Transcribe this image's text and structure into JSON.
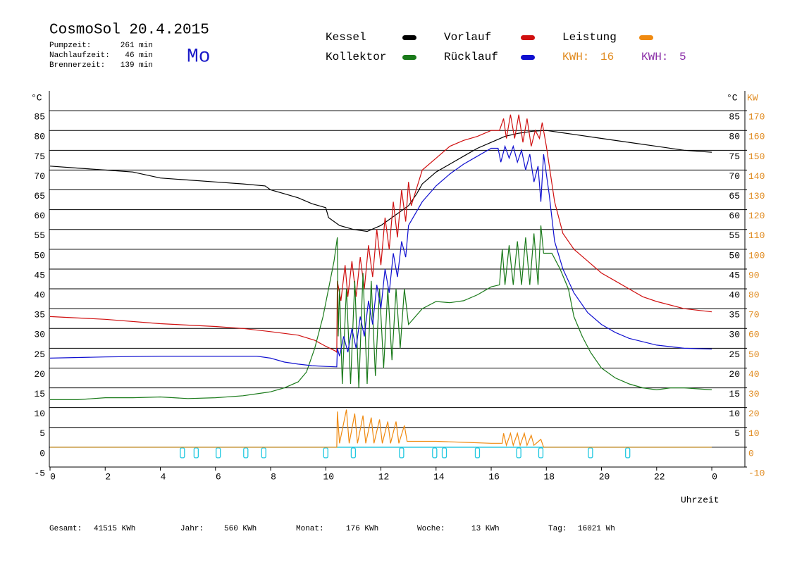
{
  "header": {
    "title": "CosmoSol 20.4.2015",
    "day": "Mo",
    "stats": [
      {
        "label": "Pumpzeit:",
        "value": "261 min"
      },
      {
        "label": "Nachlaufzeit:",
        "value": "46 min"
      },
      {
        "label": "Brennerzeit:",
        "value": "139 min"
      }
    ],
    "kwh": [
      {
        "label": "KWH:",
        "value": 16,
        "color": "#e08a1e"
      },
      {
        "label": "KWH:",
        "value": 5,
        "color": "#8b2fa8"
      }
    ]
  },
  "chart_data": {
    "type": "line",
    "xlabel": "Uhrzeit",
    "ylabel": "°C",
    "ylabel_right": "°C",
    "y2label": "KW",
    "xlim": [
      0,
      25.2
    ],
    "xticks": [
      0,
      2,
      4,
      6,
      8,
      10,
      12,
      14,
      16,
      18,
      20,
      22,
      {
        "value": 24,
        "label": "0"
      }
    ],
    "ylim": [
      -5,
      90
    ],
    "yticks": [
      -5,
      0,
      5,
      10,
      15,
      20,
      25,
      30,
      35,
      40,
      45,
      50,
      55,
      60,
      65,
      70,
      75,
      80,
      85
    ],
    "yticks_right": [
      5,
      10,
      15,
      20,
      25,
      30,
      35,
      40,
      45,
      50,
      55,
      60,
      65,
      70,
      75,
      80,
      85
    ],
    "y2lim": [
      -10,
      180
    ],
    "y2ticks": [
      -10,
      0,
      10,
      20,
      30,
      40,
      50,
      60,
      70,
      80,
      90,
      100,
      110,
      120,
      130,
      140,
      150,
      160,
      170
    ],
    "grid": true,
    "series": [
      {
        "name": "Kessel",
        "color": "#000000",
        "x": [
          0,
          1,
          2,
          3,
          4,
          5,
          6,
          7,
          7.8,
          8,
          8.5,
          9,
          9.5,
          10,
          10.1,
          10.5,
          11,
          11.5,
          12,
          12.5,
          13,
          13.3,
          13.5,
          14,
          14.5,
          15,
          15.5,
          16,
          16.5,
          17,
          17.5,
          18,
          18.5,
          19,
          20,
          21,
          22,
          23,
          24
        ],
        "values": [
          71,
          70.5,
          70,
          69.5,
          68,
          67.5,
          67,
          66.5,
          66,
          65,
          64,
          63,
          61.5,
          60.5,
          58,
          56,
          55,
          54.5,
          56,
          58.5,
          61,
          64,
          66.5,
          69.5,
          71.5,
          73.5,
          75.5,
          77,
          78.5,
          79.3,
          79.8,
          80,
          79.5,
          79,
          78,
          77,
          76,
          75,
          74.5
        ]
      },
      {
        "name": "Vorlauf",
        "color": "#d01010",
        "x": [
          0,
          2,
          4,
          6,
          7,
          8,
          9,
          9.6,
          10,
          10.35,
          10.4,
          10.42,
          10.55,
          10.7,
          10.8,
          10.95,
          11.1,
          11.25,
          11.4,
          11.55,
          11.7,
          11.85,
          12,
          12.15,
          12.3,
          12.45,
          12.6,
          12.75,
          12.9,
          13,
          13.1,
          13.5,
          14,
          14.5,
          15,
          15.5,
          16,
          16.3,
          16.45,
          16.55,
          16.7,
          16.85,
          17,
          17.15,
          17.3,
          17.45,
          17.6,
          17.75,
          17.85,
          18,
          18.3,
          18.6,
          19,
          19.5,
          20,
          20.5,
          21,
          21.5,
          22,
          23,
          24
        ],
        "values": [
          33,
          32.3,
          31.2,
          30.5,
          30,
          29.2,
          28.3,
          27,
          25.5,
          24.3,
          24,
          42,
          37,
          46,
          38,
          47,
          38,
          48,
          40,
          51,
          43,
          55,
          46,
          58,
          50,
          62,
          53,
          65,
          57,
          67,
          61,
          70,
          73,
          76,
          77.5,
          78.5,
          80,
          80,
          83,
          78,
          84,
          78,
          84,
          77,
          83,
          76,
          80,
          78,
          82,
          76,
          62,
          54,
          50,
          47,
          44,
          42,
          40,
          38,
          36.8,
          35,
          34.2
        ]
      },
      {
        "name": "Leistung",
        "color": "#f08a10",
        "axis": "y2",
        "x": [
          0,
          10.4,
          10.42,
          10.5,
          10.75,
          10.85,
          11.05,
          11.15,
          11.35,
          11.45,
          11.65,
          11.75,
          11.95,
          12.05,
          12.25,
          12.35,
          12.55,
          12.65,
          12.85,
          12.95,
          13.5,
          14,
          15,
          16,
          16.4,
          16.45,
          16.55,
          16.7,
          16.8,
          16.95,
          17.05,
          17.2,
          17.3,
          17.45,
          17.55,
          17.8,
          17.9,
          24
        ],
        "values": [
          0,
          0,
          18,
          2,
          19,
          2,
          17,
          2,
          16,
          2,
          15,
          2,
          14,
          2,
          13,
          2,
          13,
          2,
          11,
          3,
          3,
          3,
          2.5,
          2,
          2,
          7,
          1,
          7,
          1,
          7,
          1,
          7,
          1,
          6,
          1,
          4,
          0,
          0
        ]
      },
      {
        "name": "Kollektor",
        "color": "#1a7a1a",
        "x": [
          0,
          1,
          2,
          3,
          4,
          5,
          6,
          7,
          7.5,
          8,
          8.5,
          9,
          9.3,
          9.6,
          9.9,
          10.1,
          10.3,
          10.42,
          10.45,
          10.5,
          10.6,
          10.75,
          10.9,
          11.05,
          11.2,
          11.35,
          11.5,
          11.65,
          11.8,
          11.95,
          12.1,
          12.25,
          12.4,
          12.55,
          12.7,
          12.85,
          13,
          13.5,
          14,
          14.5,
          15,
          15.5,
          16,
          16.3,
          16.4,
          16.5,
          16.65,
          16.8,
          16.95,
          17.1,
          17.25,
          17.4,
          17.55,
          17.7,
          17.8,
          17.9,
          18.2,
          18.5,
          18.8,
          19,
          19.3,
          19.6,
          20,
          20.5,
          21,
          21.5,
          22,
          22.5,
          23,
          24
        ],
        "values": [
          12,
          12,
          12.5,
          12.5,
          12.7,
          12.3,
          12.5,
          13,
          13.5,
          14,
          15,
          16.5,
          19,
          25,
          33,
          40,
          47,
          53,
          28,
          40,
          16,
          40,
          16,
          42,
          15,
          44,
          16,
          42,
          18,
          40,
          20,
          40,
          22,
          40,
          25,
          40,
          31,
          35,
          36.8,
          36.5,
          37,
          38.5,
          40.5,
          41,
          50,
          41,
          51,
          41,
          52,
          41,
          53,
          41,
          54,
          41,
          56,
          49,
          49,
          45,
          40,
          33,
          28,
          24,
          20,
          17.5,
          16,
          15,
          14.5,
          15,
          15,
          14.5
        ]
      },
      {
        "name": "Rücklauf",
        "color": "#1010d0",
        "x": [
          0,
          2,
          4,
          6,
          7.5,
          8,
          8.5,
          9,
          9.5,
          10,
          10.4,
          10.42,
          10.5,
          10.65,
          10.8,
          10.95,
          11.1,
          11.25,
          11.4,
          11.55,
          11.7,
          11.85,
          12,
          12.15,
          12.3,
          12.45,
          12.6,
          12.75,
          12.9,
          13,
          13.5,
          14,
          14.5,
          15,
          15.5,
          16,
          16.25,
          16.35,
          16.5,
          16.65,
          16.8,
          16.95,
          17.1,
          17.25,
          17.4,
          17.55,
          17.7,
          17.8,
          17.9,
          18.1,
          18.3,
          18.6,
          19,
          19.5,
          20,
          20.5,
          21,
          22,
          23,
          24
        ],
        "values": [
          22.5,
          22.8,
          23,
          23,
          23,
          22.5,
          21.5,
          21,
          20.6,
          20.4,
          20.3,
          25,
          23,
          28,
          24,
          30,
          25,
          33,
          28,
          37,
          31,
          41,
          35,
          45,
          39,
          49,
          43,
          52,
          48,
          56,
          62,
          66,
          69,
          71.5,
          73.5,
          75.5,
          75.5,
          72,
          76,
          73,
          76,
          72,
          75,
          70,
          74,
          67,
          71,
          62,
          74,
          64,
          52,
          45,
          39,
          34,
          31,
          29,
          27.5,
          25.8,
          25,
          24.8
        ]
      }
    ],
    "baseline": {
      "color": "#20c8e0",
      "x": [
        0,
        24
      ],
      "values": [
        0,
        0
      ],
      "markers_x": [
        4.8,
        5.3,
        6.1,
        7.1,
        7.75,
        10.0,
        11.0,
        12.75,
        13.95,
        14.3,
        15.5,
        17.0,
        17.8,
        19.6,
        20.95
      ]
    }
  },
  "footer": [
    {
      "label": "Gesamt:",
      "value": "41515 KWh"
    },
    {
      "label": "Jahr:",
      "value": "560 KWh"
    },
    {
      "label": "Monat:",
      "value": "176 KWh"
    },
    {
      "label": "Woche:",
      "value": "13 KWh"
    },
    {
      "label": "Tag:",
      "value": "16021 Wh"
    }
  ]
}
